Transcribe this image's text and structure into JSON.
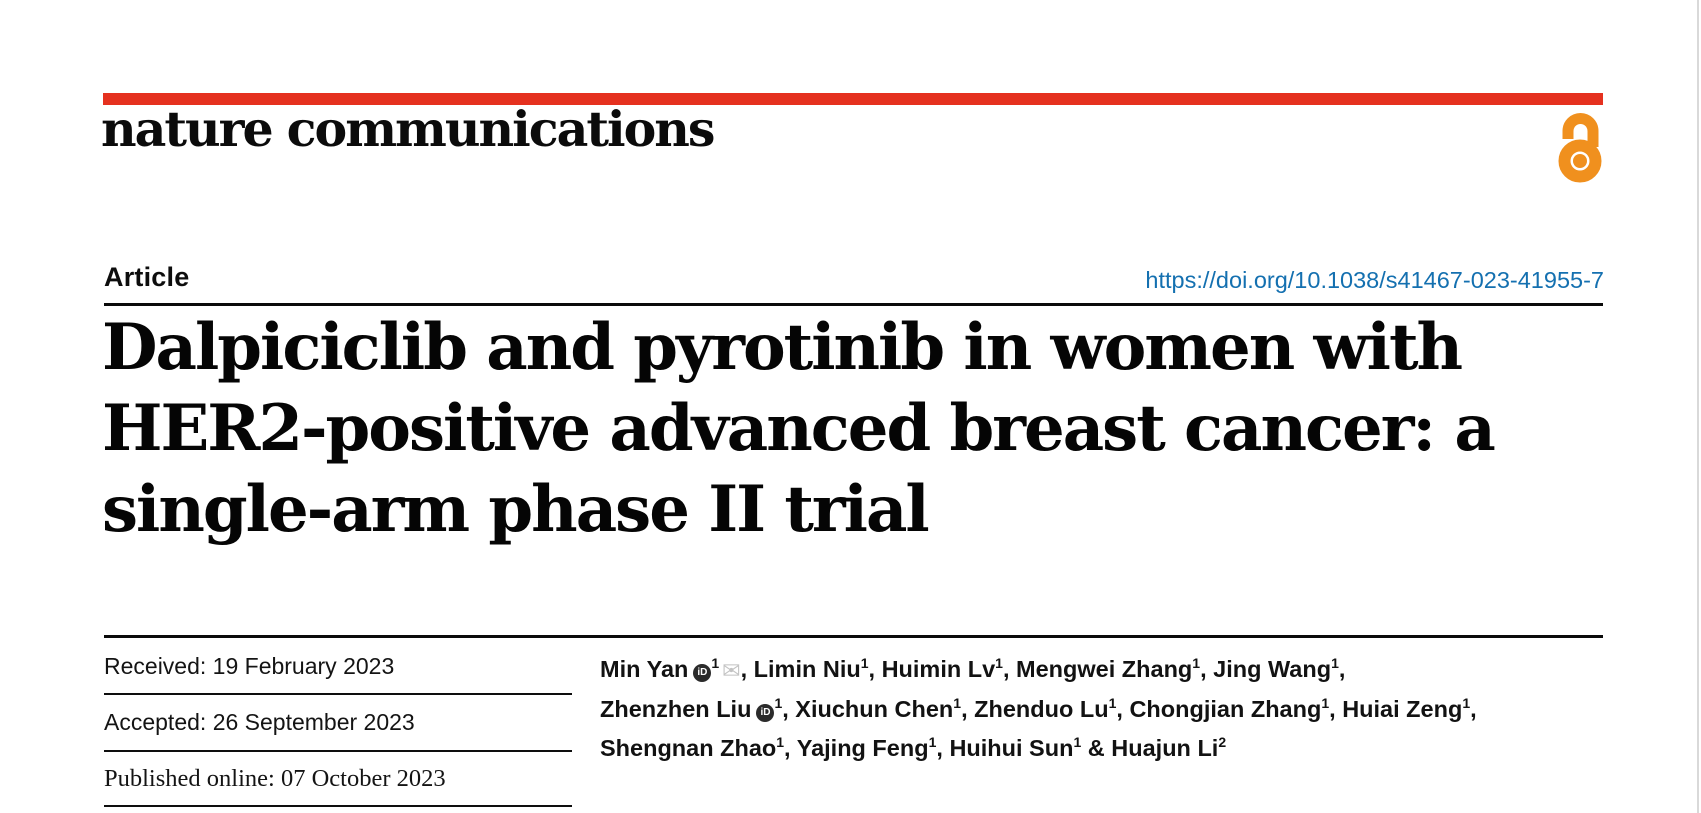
{
  "masthead": {
    "journal_name": "nature communications",
    "accent_color": "#e5311f",
    "open_access_color": "#f0901e"
  },
  "article": {
    "kicker": "Article",
    "doi_link": "https://doi.org/10.1038/s41467-023-41955-7",
    "doi_color": "#1470b0",
    "title_lines": [
      "Dalpiciclib and pyrotinib in women with",
      "HER2-positive advanced breast cancer: a",
      "single-arm phase II trial"
    ]
  },
  "dates": [
    {
      "label": "Received:",
      "value": "19 February 2023"
    },
    {
      "label": "Accepted:",
      "value": "26 September 2023"
    },
    {
      "label": "Published online:",
      "value": "07 October 2023"
    }
  ],
  "authors": {
    "icons": {
      "orcid_glyph": "iD",
      "email_glyph": "✉"
    },
    "lines": [
      [
        {
          "name": "Min Yan",
          "orcid": true,
          "sup": "1",
          "email": true,
          "sep": ", "
        },
        {
          "name": "Limin Niu",
          "sup": "1",
          "sep": ", "
        },
        {
          "name": "Huimin Lv",
          "sup": "1",
          "sep": ", "
        },
        {
          "name": "Mengwei Zhang",
          "sup": "1",
          "sep": ", "
        },
        {
          "name": "Jing Wang",
          "sup": "1",
          "sep": ","
        }
      ],
      [
        {
          "name": "Zhenzhen Liu",
          "orcid": true,
          "sup": "1",
          "sep": ", "
        },
        {
          "name": "Xiuchun Chen",
          "sup": "1",
          "sep": ", "
        },
        {
          "name": "Zhenduo Lu",
          "sup": "1",
          "sep": ", "
        },
        {
          "name": "Chongjian Zhang",
          "sup": "1",
          "sep": ", "
        },
        {
          "name": "Huiai Zeng",
          "sup": "1",
          "sep": ","
        }
      ],
      [
        {
          "name": "Shengnan Zhao",
          "sup": "1",
          "sep": ", "
        },
        {
          "name": "Yajing Feng",
          "sup": "1",
          "sep": ", "
        },
        {
          "name": "Huihui Sun",
          "sup": "1",
          "sep": " & "
        },
        {
          "name": "Huajun Li",
          "sup": "2",
          "sep": ""
        }
      ]
    ]
  }
}
